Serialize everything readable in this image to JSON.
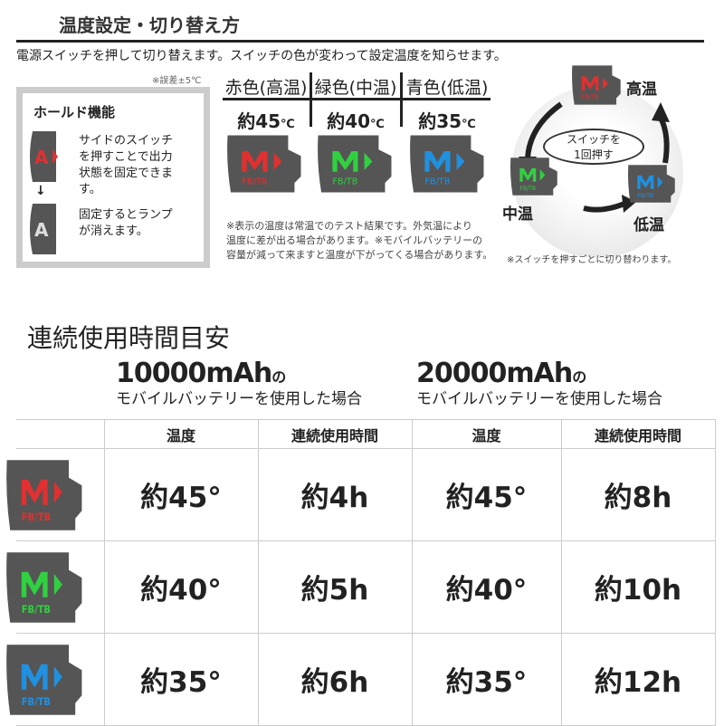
{
  "top": {
    "title": "温度設定・切り替え方",
    "subtitle": "電源スイッチを押して切り替えます。スイッチの色が変わって設定温度を知らせます。",
    "error_note": "※誤差±5℃",
    "hold": {
      "title": "ホールド機能",
      "text1": [
        "サイドのスイッチ",
        "を押すことで出力",
        "状態を固定できま",
        "す。"
      ],
      "arrow": "↓",
      "text2": [
        "固定するとランプ",
        "が消えます。"
      ]
    },
    "modes": [
      {
        "header": "赤色(高温)",
        "temp": "約45",
        "unit": "℃",
        "color": "#e03030"
      },
      {
        "header": "緑色(中温)",
        "temp": "約40",
        "unit": "℃",
        "color": "#30d040"
      },
      {
        "header": "青色(低温)",
        "temp": "約35",
        "unit": "℃",
        "color": "#2090e0"
      }
    ],
    "device_label": "FB/TB",
    "notes": [
      "※表示の温度は常温でのテスト結果です。外気温により",
      "温度に差が出る場合があります。※モバイルバッテリーの",
      "容量が減って来ますと温度が下がってくる場合があります。"
    ],
    "cycle": {
      "high": "高温",
      "mid": "中温",
      "low": "低温",
      "bubble1": "スイッチを",
      "bubble2": "1回押す",
      "note": "※スイッチを押すごとに切り替わります。"
    }
  },
  "usage": {
    "title": "連続使用時間目安",
    "batteries": [
      {
        "capacity": "10000mAh",
        "suffix": "の",
        "desc": "モバイルバッテリーを使用した場合"
      },
      {
        "capacity": "20000mAh",
        "suffix": "の",
        "desc": "モバイルバッテリーを使用した場合"
      }
    ],
    "headers": [
      "温度",
      "連続使用時間",
      "温度",
      "連続使用時間"
    ],
    "rows": [
      {
        "color": "#e03030",
        "cells": [
          "約45°",
          "約4h",
          "約45°",
          "約8h"
        ]
      },
      {
        "color": "#30d040",
        "cells": [
          "約40°",
          "約5h",
          "約40°",
          "約10h"
        ]
      },
      {
        "color": "#2090e0",
        "cells": [
          "約35°",
          "約6h",
          "約35°",
          "約12h"
        ]
      }
    ]
  }
}
